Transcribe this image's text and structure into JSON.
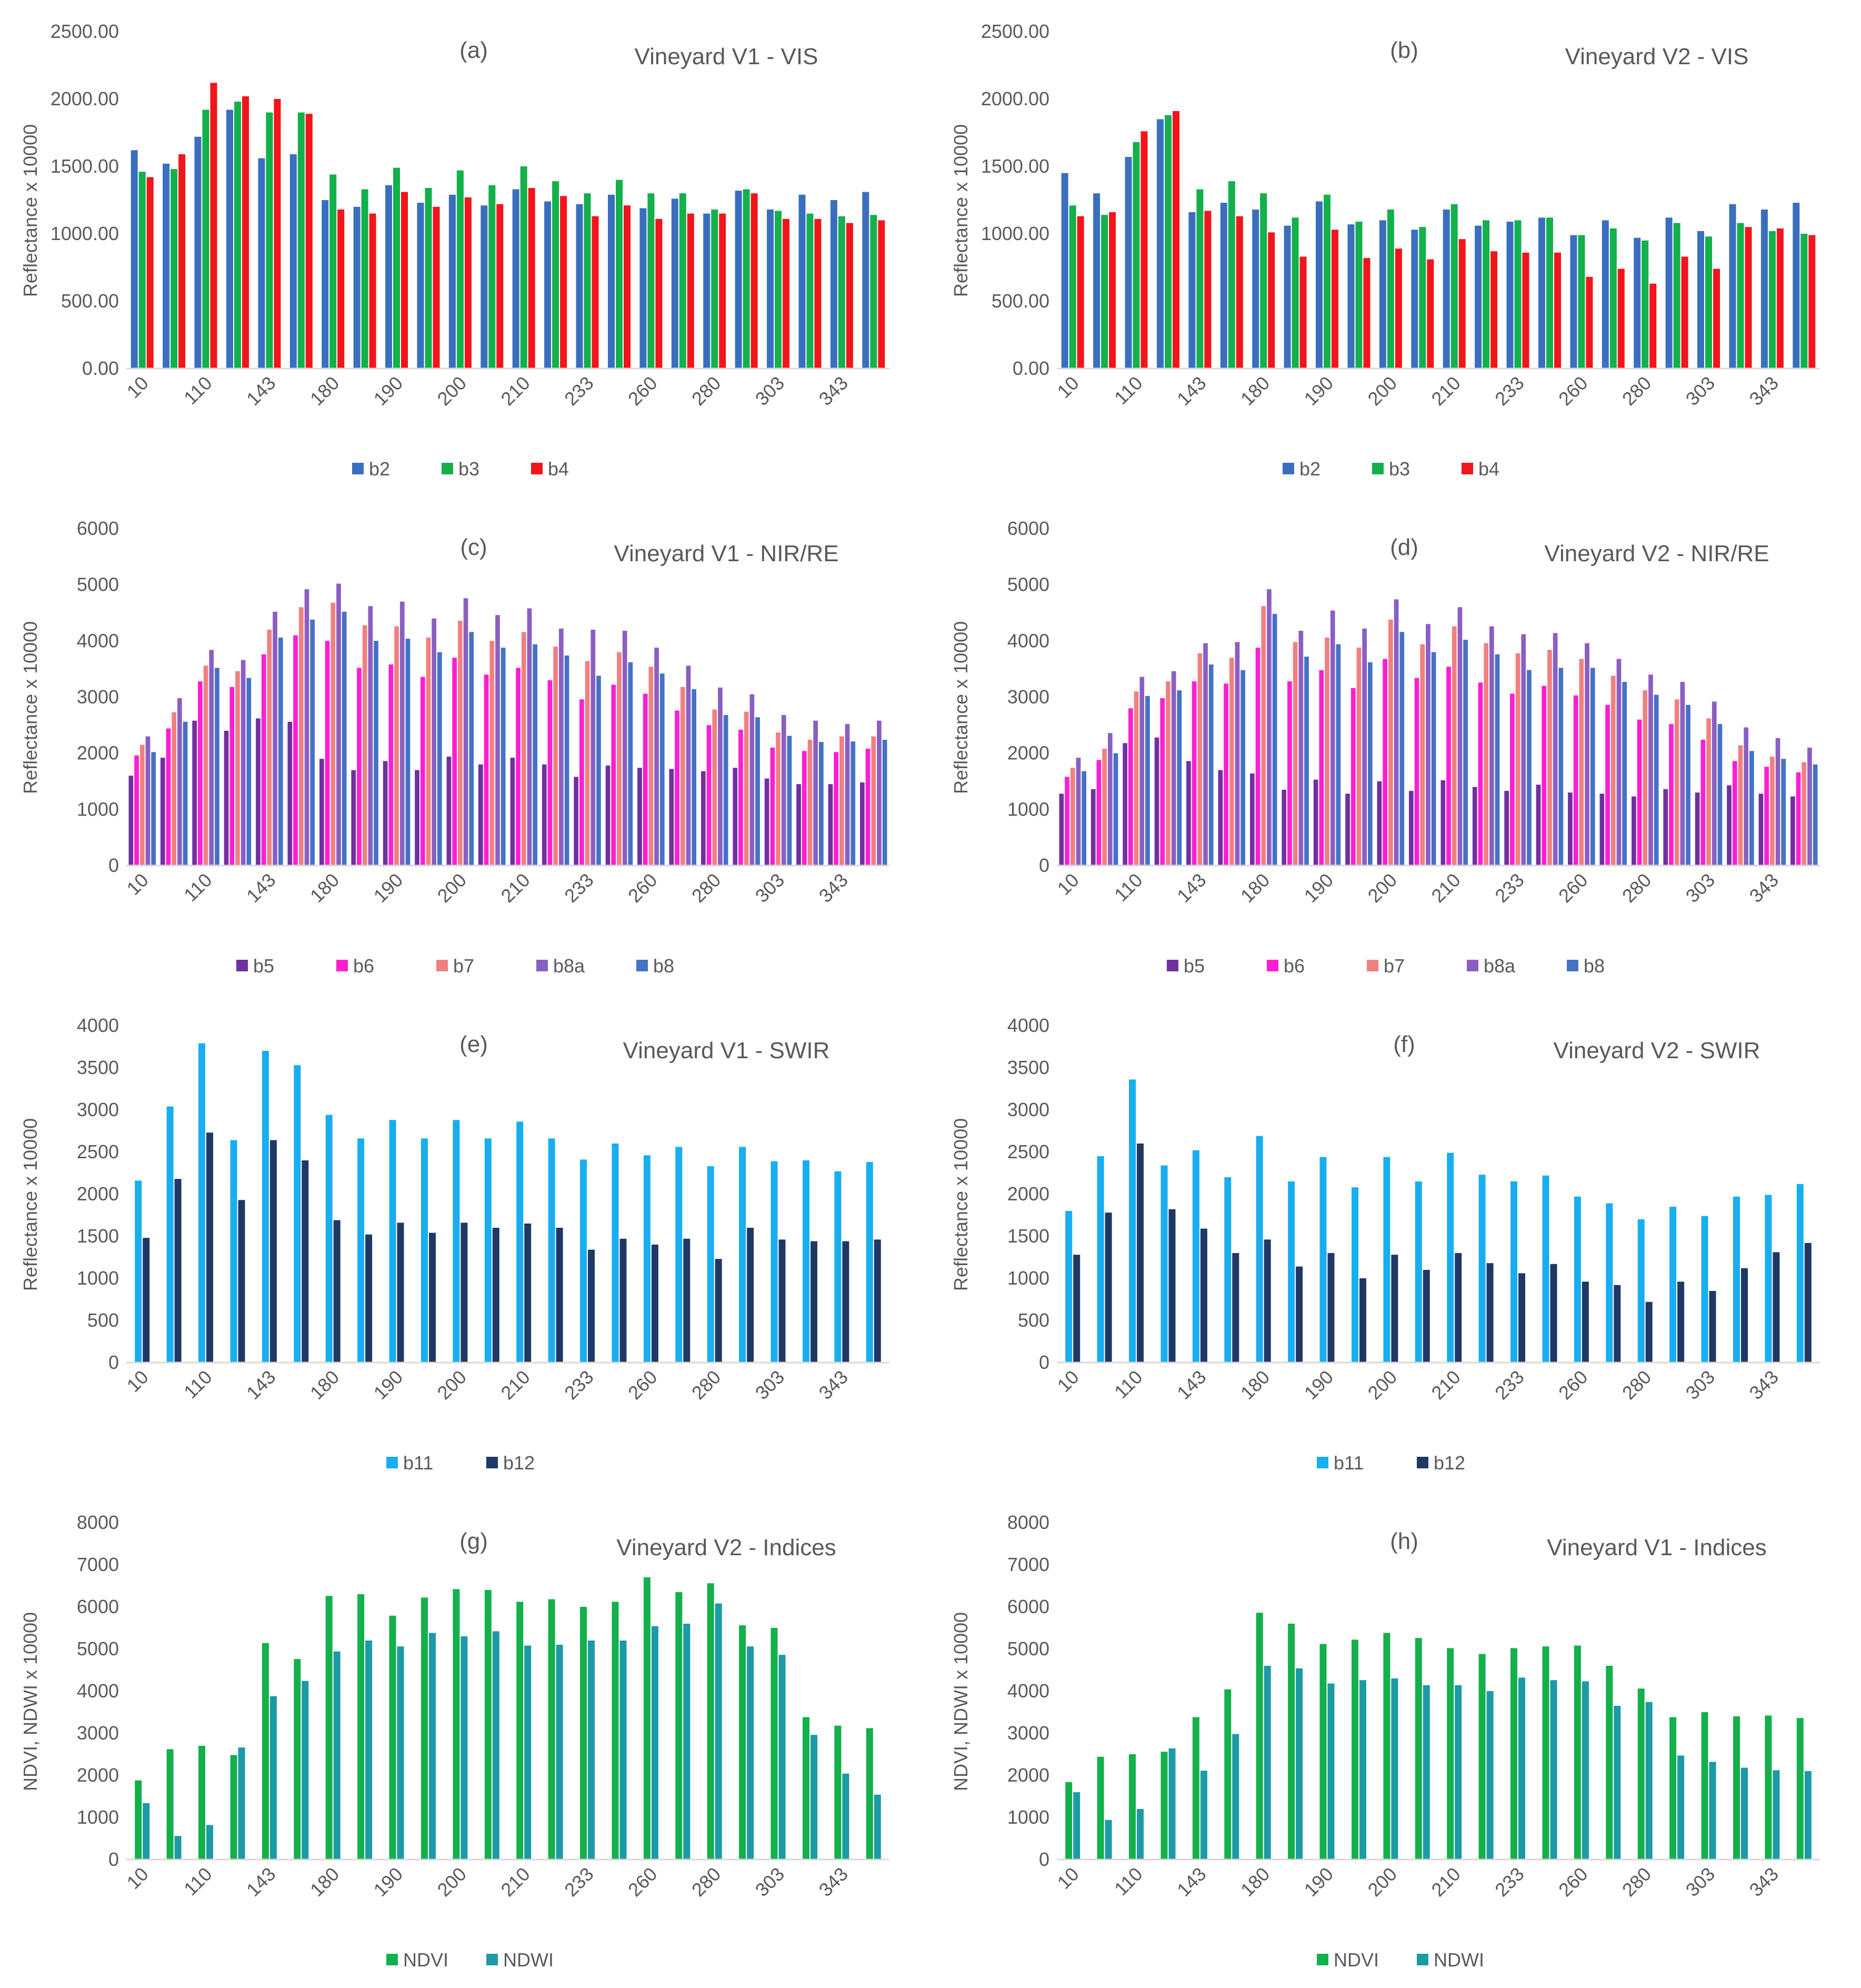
{
  "colors": {
    "b2": "#3a6fbf",
    "b3": "#13b04b",
    "b4": "#f2151b",
    "b5": "#7030a0",
    "b6": "#ff1ed2",
    "b7": "#f08080",
    "b8a": "#8a5fc4",
    "b8": "#4472c4",
    "b11": "#18aef0",
    "b12": "#203864",
    "NDVI": "#13b04b",
    "NDWI": "#1c9aa5",
    "axis": "#d9d9d9",
    "text": "#595959"
  },
  "chart_data": [
    {
      "id": "a",
      "type": "bar",
      "panel_label": "(a)",
      "title": "Vineyard V1  - VIS",
      "ylabel": "Reflectance x 10000",
      "ylim": [
        0,
        2500
      ],
      "ytick_step": 500,
      "ytick_decimals": 2,
      "categories": [
        "10",
        "",
        "110",
        "",
        "143",
        "",
        "180",
        "",
        "190",
        "",
        "200",
        "",
        "210",
        "",
        "233",
        "",
        "260",
        "",
        "280",
        "",
        "303",
        "",
        "343",
        ""
      ],
      "series": [
        {
          "name": "b2",
          "color_key": "b2",
          "values": [
            1620,
            1520,
            1720,
            1920,
            1560,
            1590,
            1250,
            1200,
            1360,
            1230,
            1290,
            1210,
            1330,
            1240,
            1220,
            1290,
            1190,
            1260,
            1150,
            1320,
            1180,
            1290,
            1250,
            1310
          ]
        },
        {
          "name": "b3",
          "color_key": "b3",
          "values": [
            1460,
            1480,
            1920,
            1980,
            1900,
            1900,
            1440,
            1330,
            1490,
            1340,
            1470,
            1360,
            1500,
            1390,
            1300,
            1400,
            1300,
            1300,
            1180,
            1330,
            1170,
            1150,
            1130,
            1140
          ]
        },
        {
          "name": "b4",
          "color_key": "b4",
          "values": [
            1420,
            1590,
            2120,
            2020,
            2000,
            1890,
            1180,
            1150,
            1310,
            1200,
            1270,
            1220,
            1340,
            1280,
            1130,
            1210,
            1110,
            1150,
            1150,
            1300,
            1110,
            1110,
            1080,
            1100
          ]
        }
      ]
    },
    {
      "id": "b",
      "type": "bar",
      "panel_label": "(b)",
      "title": "Vineyard V2  - VIS",
      "ylabel": "Reflectance x 10000",
      "ylim": [
        0,
        2500
      ],
      "ytick_step": 500,
      "ytick_decimals": 2,
      "categories": [
        "10",
        "",
        "110",
        "",
        "143",
        "",
        "180",
        "",
        "190",
        "",
        "200",
        "",
        "210",
        "",
        "233",
        "",
        "260",
        "",
        "280",
        "",
        "303",
        "",
        "343",
        ""
      ],
      "series": [
        {
          "name": "b2",
          "color_key": "b2",
          "values": [
            1450,
            1300,
            1570,
            1850,
            1160,
            1230,
            1180,
            1060,
            1240,
            1070,
            1100,
            1030,
            1180,
            1060,
            1090,
            1120,
            990,
            1100,
            970,
            1120,
            1020,
            1220,
            1180,
            1230
          ]
        },
        {
          "name": "b3",
          "color_key": "b3",
          "values": [
            1210,
            1140,
            1680,
            1880,
            1330,
            1390,
            1300,
            1120,
            1290,
            1090,
            1180,
            1050,
            1220,
            1100,
            1100,
            1120,
            990,
            1040,
            950,
            1080,
            980,
            1080,
            1020,
            1000
          ]
        },
        {
          "name": "b4",
          "color_key": "b4",
          "values": [
            1130,
            1160,
            1760,
            1910,
            1170,
            1130,
            1010,
            830,
            1030,
            820,
            890,
            810,
            960,
            870,
            860,
            860,
            680,
            740,
            630,
            830,
            740,
            1050,
            1040,
            990
          ]
        }
      ]
    },
    {
      "id": "c",
      "type": "bar",
      "panel_label": "(c)",
      "title": "Vineyard V1 - NIR/RE",
      "ylabel": "Reflectance x 10000",
      "ylim": [
        0,
        6000
      ],
      "ytick_step": 1000,
      "ytick_decimals": 0,
      "categories": [
        "10",
        "",
        "110",
        "",
        "143",
        "",
        "180",
        "",
        "190",
        "",
        "200",
        "",
        "210",
        "",
        "233",
        "",
        "260",
        "",
        "280",
        "",
        "303",
        "",
        "343",
        ""
      ],
      "series": [
        {
          "name": "b5",
          "color_key": "b5",
          "values": [
            1600,
            1920,
            2580,
            2400,
            2620,
            2560,
            1900,
            1700,
            1860,
            1700,
            1940,
            1800,
            1920,
            1800,
            1580,
            1780,
            1740,
            1720,
            1680,
            1740,
            1550,
            1450,
            1450,
            1480
          ]
        },
        {
          "name": "b6",
          "color_key": "b6",
          "values": [
            1960,
            2440,
            3280,
            3180,
            3760,
            4100,
            4000,
            3520,
            3580,
            3360,
            3700,
            3400,
            3520,
            3300,
            2960,
            3220,
            3060,
            2760,
            2500,
            2420,
            2100,
            2040,
            2020,
            2080
          ]
        },
        {
          "name": "b7",
          "color_key": "b7",
          "values": [
            2150,
            2730,
            3560,
            3460,
            4200,
            4600,
            4680,
            4280,
            4260,
            4060,
            4360,
            4000,
            4160,
            3900,
            3640,
            3800,
            3540,
            3180,
            2780,
            2740,
            2370,
            2240,
            2300,
            2300
          ]
        },
        {
          "name": "b8a",
          "color_key": "b8a",
          "values": [
            2300,
            2980,
            3840,
            3660,
            4520,
            4920,
            5020,
            4620,
            4700,
            4400,
            4760,
            4460,
            4580,
            4220,
            4200,
            4180,
            3880,
            3560,
            3170,
            3050,
            2680,
            2580,
            2520,
            2580
          ]
        },
        {
          "name": "b8",
          "color_key": "b8",
          "values": [
            2020,
            2560,
            3520,
            3340,
            4060,
            4380,
            4520,
            4000,
            4040,
            3800,
            4160,
            3880,
            3940,
            3740,
            3380,
            3620,
            3420,
            3140,
            2680,
            2640,
            2310,
            2200,
            2210,
            2240
          ]
        }
      ]
    },
    {
      "id": "d",
      "type": "bar",
      "panel_label": "(d)",
      "title": "Vineyard V2 - NIR/RE",
      "ylabel": "Reflectance x 10000",
      "ylim": [
        0,
        6000
      ],
      "ytick_step": 1000,
      "ytick_decimals": 0,
      "categories": [
        "10",
        "",
        "110",
        "",
        "143",
        "",
        "180",
        "",
        "190",
        "",
        "200",
        "",
        "210",
        "",
        "233",
        "",
        "260",
        "",
        "280",
        "",
        "303",
        "",
        "343",
        ""
      ],
      "series": [
        {
          "name": "b5",
          "color_key": "b5",
          "values": [
            1280,
            1360,
            2180,
            2280,
            1860,
            1700,
            1640,
            1350,
            1530,
            1280,
            1500,
            1330,
            1520,
            1400,
            1330,
            1440,
            1300,
            1280,
            1230,
            1360,
            1300,
            1430,
            1280,
            1230
          ]
        },
        {
          "name": "b6",
          "color_key": "b6",
          "values": [
            1580,
            1880,
            2800,
            2980,
            3280,
            3240,
            3880,
            3280,
            3480,
            3160,
            3680,
            3340,
            3540,
            3260,
            3060,
            3200,
            3030,
            2860,
            2600,
            2520,
            2240,
            1860,
            1760,
            1660
          ]
        },
        {
          "name": "b7",
          "color_key": "b7",
          "values": [
            1740,
            2080,
            3100,
            3280,
            3780,
            3700,
            4620,
            3980,
            4060,
            3880,
            4380,
            3940,
            4260,
            3960,
            3780,
            3840,
            3680,
            3380,
            3120,
            2960,
            2620,
            2140,
            1940,
            1840
          ]
        },
        {
          "name": "b8a",
          "color_key": "b8a",
          "values": [
            1920,
            2360,
            3360,
            3460,
            3960,
            3980,
            4920,
            4180,
            4540,
            4220,
            4740,
            4300,
            4600,
            4260,
            4120,
            4140,
            3960,
            3680,
            3400,
            3270,
            2920,
            2460,
            2270,
            2100
          ]
        },
        {
          "name": "b8",
          "color_key": "b8",
          "values": [
            1680,
            2000,
            3020,
            3120,
            3580,
            3480,
            4480,
            3720,
            3940,
            3620,
            4160,
            3800,
            4020,
            3760,
            3480,
            3520,
            3520,
            3270,
            3040,
            2860,
            2520,
            2040,
            1900,
            1800
          ]
        }
      ]
    },
    {
      "id": "e",
      "type": "bar",
      "panel_label": "(e)",
      "title": "Vineyard V1 - SWIR",
      "ylabel": "Reflectance x 10000",
      "ylim": [
        0,
        4000
      ],
      "ytick_step": 500,
      "ytick_decimals": 0,
      "categories": [
        "10",
        "",
        "110",
        "",
        "143",
        "",
        "180",
        "",
        "190",
        "",
        "200",
        "",
        "210",
        "",
        "233",
        "",
        "260",
        "",
        "280",
        "",
        "303",
        "",
        "343",
        ""
      ],
      "series": [
        {
          "name": "b11",
          "color_key": "b11",
          "values": [
            2160,
            3040,
            3790,
            2640,
            3700,
            3530,
            2940,
            2660,
            2880,
            2660,
            2880,
            2660,
            2860,
            2660,
            2410,
            2600,
            2460,
            2560,
            2330,
            2560,
            2390,
            2400,
            2270,
            2380
          ]
        },
        {
          "name": "b12",
          "color_key": "b12",
          "values": [
            1480,
            2180,
            2730,
            1930,
            2640,
            2400,
            1690,
            1520,
            1660,
            1540,
            1660,
            1600,
            1650,
            1600,
            1340,
            1470,
            1400,
            1470,
            1230,
            1600,
            1460,
            1440,
            1440,
            1460
          ]
        }
      ]
    },
    {
      "id": "f",
      "type": "bar",
      "panel_label": "(f)",
      "title": "Vineyard V2 - SWIR",
      "ylabel": "Reflectance x 10000",
      "ylim": [
        0,
        4000
      ],
      "ytick_step": 500,
      "ytick_decimals": 0,
      "categories": [
        "10",
        "",
        "110",
        "",
        "143",
        "",
        "180",
        "",
        "190",
        "",
        "200",
        "",
        "210",
        "",
        "233",
        "",
        "260",
        "",
        "280",
        "",
        "303",
        "",
        "343",
        ""
      ],
      "series": [
        {
          "name": "b11",
          "color_key": "b11",
          "values": [
            1800,
            2450,
            3360,
            2340,
            2520,
            2200,
            2690,
            2150,
            2440,
            2080,
            2440,
            2150,
            2490,
            2230,
            2150,
            2220,
            1970,
            1890,
            1700,
            1850,
            1740,
            1970,
            1990,
            2120
          ]
        },
        {
          "name": "b12",
          "color_key": "b12",
          "values": [
            1280,
            1780,
            2600,
            1820,
            1590,
            1300,
            1460,
            1140,
            1300,
            1000,
            1280,
            1100,
            1300,
            1180,
            1060,
            1170,
            960,
            920,
            720,
            960,
            850,
            1120,
            1310,
            1420
          ]
        }
      ]
    },
    {
      "id": "g",
      "type": "bar",
      "panel_label": "(g)",
      "title": "Vineyard V2 - Indices",
      "ylabel": "NDVI, NDWI x 10000",
      "ylim": [
        0,
        8000
      ],
      "ytick_step": 1000,
      "ytick_decimals": 0,
      "categories": [
        "10",
        "",
        "110",
        "",
        "143",
        "",
        "180",
        "",
        "190",
        "",
        "200",
        "",
        "210",
        "",
        "233",
        "",
        "260",
        "",
        "280",
        "",
        "303",
        "",
        "343",
        ""
      ],
      "series": [
        {
          "name": "NDVI",
          "color_key": "NDVI",
          "values": [
            1880,
            2620,
            2700,
            2480,
            5140,
            4760,
            6260,
            6300,
            5790,
            6220,
            6420,
            6400,
            6120,
            6180,
            6000,
            6120,
            6700,
            6350,
            6560,
            5560,
            5500,
            3380,
            3180,
            3120
          ]
        },
        {
          "name": "NDWI",
          "color_key": "NDWI",
          "values": [
            1340,
            560,
            820,
            2660,
            3880,
            4240,
            4940,
            5200,
            5060,
            5380,
            5300,
            5420,
            5080,
            5100,
            5200,
            5200,
            5540,
            5600,
            6080,
            5060,
            4860,
            2960,
            2040,
            1540
          ]
        }
      ]
    },
    {
      "id": "h",
      "type": "bar",
      "panel_label": "(h)",
      "title": "Vineyard V1 - Indices",
      "ylabel": "NDVI, NDWI x 10000",
      "ylim": [
        0,
        8000
      ],
      "ytick_step": 1000,
      "ytick_decimals": 0,
      "categories": [
        "10",
        "",
        "110",
        "",
        "143",
        "",
        "180",
        "",
        "190",
        "",
        "200",
        "",
        "210",
        "",
        "233",
        "",
        "260",
        "",
        "280",
        "",
        "303",
        "",
        "343",
        ""
      ],
      "series": [
        {
          "name": "NDVI",
          "color_key": "NDVI",
          "values": [
            1840,
            2440,
            2500,
            2560,
            3380,
            4040,
            5860,
            5600,
            5120,
            5220,
            5380,
            5260,
            5020,
            4880,
            5020,
            5060,
            5080,
            4600,
            4060,
            3380,
            3500,
            3400,
            3420,
            3360
          ]
        },
        {
          "name": "NDWI",
          "color_key": "NDWI",
          "values": [
            1600,
            940,
            1200,
            2640,
            2110,
            2980,
            4600,
            4540,
            4180,
            4260,
            4300,
            4140,
            4140,
            4000,
            4320,
            4260,
            4230,
            3650,
            3740,
            2470,
            2320,
            2180,
            2120,
            2100
          ]
        }
      ]
    }
  ]
}
